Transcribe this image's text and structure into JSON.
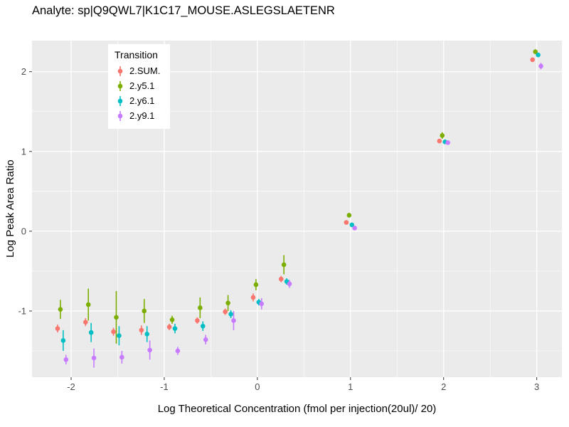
{
  "chart_data": {
    "type": "scatter",
    "title": "Analyte: sp|Q9QWL7|K1C17_MOUSE.ASLEGSLAETENR",
    "xlabel": "Log Theoretical Concentration (fmol per injection(20ul)/ 20)",
    "ylabel": "Log Peak Area Ratio",
    "xlim": [
      -2.42,
      3.27
    ],
    "ylim": [
      -1.83,
      2.39
    ],
    "x_major_ticks": [
      -2,
      -1,
      0,
      1,
      2,
      3
    ],
    "y_major_ticks": [
      -1,
      0,
      1,
      2
    ],
    "x_minor_ticks": [
      -1.5,
      -0.5,
      0.5,
      1.5,
      2.5
    ],
    "y_minor_ticks": [
      -1.5,
      -0.5,
      0.5,
      1.5
    ],
    "grid": "white major and minor gridlines on gray panel",
    "legend": {
      "title": "Transition",
      "position": "inside top-left"
    },
    "x": [
      -2.1,
      -1.8,
      -1.5,
      -1.2,
      -0.9,
      -0.6,
      -0.3,
      0.0,
      0.3,
      1.0,
      2.0,
      3.0
    ],
    "dodge_offsets": [
      -0.045,
      -0.015,
      0.015,
      0.045
    ],
    "series": [
      {
        "name": "2.SUM.",
        "color": "#F8766D",
        "y": [
          -1.22,
          -1.14,
          -1.26,
          -1.24,
          -1.2,
          -1.12,
          -1.01,
          -0.83,
          -0.6,
          0.11,
          1.13,
          2.15
        ],
        "yerr": [
          0.05,
          0.05,
          0.05,
          0.06,
          0.04,
          0.04,
          0.04,
          0.05,
          0.04,
          0.02,
          0.02,
          0.02
        ]
      },
      {
        "name": "2.y5.1",
        "color": "#7CAE00",
        "y": [
          -0.98,
          -0.92,
          -1.08,
          -1.0,
          -1.11,
          -0.96,
          -0.9,
          -0.67,
          -0.42,
          0.2,
          1.2,
          2.25
        ],
        "yerr": [
          0.12,
          0.2,
          0.33,
          0.15,
          0.05,
          0.13,
          0.1,
          0.07,
          0.12,
          0.03,
          0.04,
          0.03
        ]
      },
      {
        "name": "2.y6.1",
        "color": "#00BFC4",
        "y": [
          -1.37,
          -1.27,
          -1.31,
          -1.29,
          -1.22,
          -1.19,
          -1.04,
          -0.89,
          -0.63,
          0.08,
          1.12,
          2.21
        ],
        "yerr": [
          0.13,
          0.12,
          0.12,
          0.1,
          0.06,
          0.06,
          0.05,
          0.04,
          0.04,
          0.02,
          0.02,
          0.02
        ]
      },
      {
        "name": "2.y9.1",
        "color": "#C77CFF",
        "y": [
          -1.61,
          -1.59,
          -1.58,
          -1.49,
          -1.5,
          -1.36,
          -1.12,
          -0.91,
          -0.66,
          0.04,
          1.11,
          2.07
        ],
        "yerr": [
          0.06,
          0.12,
          0.08,
          0.12,
          0.05,
          0.06,
          0.12,
          0.07,
          0.05,
          0.02,
          0.02,
          0.04
        ]
      }
    ]
  },
  "style": {
    "panel_bg": "#EBEBEB",
    "grid_color": "#FFFFFF",
    "tick_color": "#333333",
    "tick_label_color": "#4D4D4D",
    "text_color": "#000000",
    "legend_bg": "#FFFFFF"
  }
}
